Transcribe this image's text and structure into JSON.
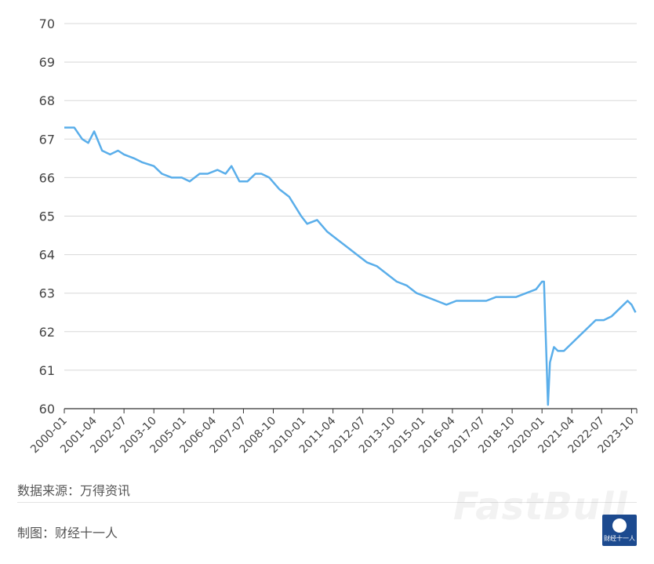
{
  "chart_data": {
    "type": "line",
    "title": "",
    "xlabel": "",
    "ylabel": "",
    "ylim": [
      60,
      70
    ],
    "yticks": [
      "60",
      "61",
      "62",
      "63",
      "64",
      "65",
      "66",
      "67",
      "68",
      "69",
      "70"
    ],
    "xticks": [
      "2000-01",
      "2001-04",
      "2002-07",
      "2003-10",
      "2005-01",
      "2006-04",
      "2007-07",
      "2008-10",
      "2010-01",
      "2011-04",
      "2012-07",
      "2013-10",
      "2015-01",
      "2016-04",
      "2017-07",
      "2018-10",
      "2020-01",
      "2021-04",
      "2022-07",
      "2023-10"
    ],
    "grid": true,
    "legend": "none",
    "line_color": "#5aaeea",
    "series": [
      {
        "x": [
          "2000-01",
          "2000-06",
          "2000-10",
          "2001-01",
          "2001-04",
          "2001-08",
          "2001-12",
          "2002-04",
          "2002-07",
          "2002-12",
          "2003-04",
          "2003-10",
          "2004-02",
          "2004-07",
          "2004-12",
          "2005-04",
          "2005-09",
          "2006-01",
          "2006-06",
          "2006-10",
          "2007-01",
          "2007-05",
          "2007-09",
          "2008-01",
          "2008-04",
          "2008-08",
          "2009-01",
          "2009-06",
          "2009-12",
          "2010-03",
          "2010-08",
          "2011-01",
          "2011-06",
          "2011-11",
          "2012-04",
          "2012-09",
          "2013-02",
          "2013-07",
          "2013-12",
          "2014-05",
          "2014-10",
          "2015-03",
          "2015-08",
          "2016-01",
          "2016-06",
          "2016-11",
          "2017-04",
          "2017-09",
          "2018-02",
          "2018-07",
          "2018-12",
          "2019-05",
          "2019-10",
          "2020-01",
          "2020-02",
          "2020-04",
          "2020-05",
          "2020-07",
          "2020-09",
          "2020-12",
          "2021-04",
          "2021-08",
          "2021-12",
          "2022-04",
          "2022-08",
          "2022-12",
          "2023-04",
          "2023-08",
          "2023-10",
          "2023-12"
        ],
        "values": [
          67.3,
          67.3,
          67.0,
          66.9,
          67.2,
          66.7,
          66.6,
          66.7,
          66.6,
          66.5,
          66.4,
          66.3,
          66.1,
          66.0,
          66.0,
          65.9,
          66.1,
          66.1,
          66.2,
          66.1,
          66.3,
          65.9,
          65.9,
          66.1,
          66.1,
          66.0,
          65.7,
          65.5,
          65.0,
          64.8,
          64.9,
          64.6,
          64.4,
          64.2,
          64.0,
          63.8,
          63.7,
          63.5,
          63.3,
          63.2,
          63.0,
          62.9,
          62.8,
          62.7,
          62.8,
          62.8,
          62.8,
          62.8,
          62.9,
          62.9,
          62.9,
          63.0,
          63.1,
          63.3,
          63.3,
          60.1,
          61.2,
          61.6,
          61.5,
          61.5,
          61.7,
          61.9,
          62.1,
          62.3,
          62.3,
          62.4,
          62.6,
          62.8,
          62.7,
          62.5
        ]
      }
    ]
  },
  "footer": {
    "source": "数据来源：万得资讯",
    "maker": "制图：财经十一人",
    "watermark": "FastBull",
    "logo_text": "财经十一人"
  }
}
